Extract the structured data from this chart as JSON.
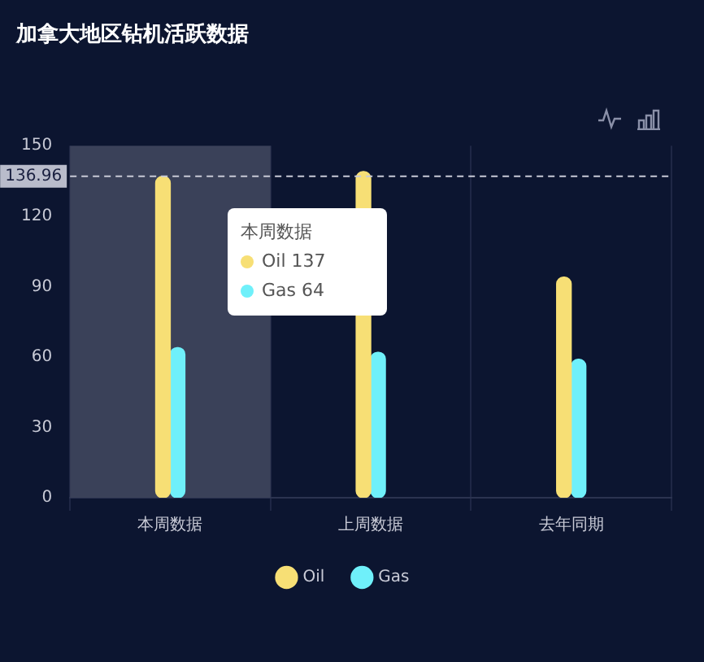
{
  "chart_data": {
    "type": "bar",
    "title": "加拿大地区钻机活跃数据",
    "categories": [
      "本周数据",
      "上周数据",
      "去年同期"
    ],
    "series": [
      {
        "name": "Oil",
        "color": "#f7df75",
        "values": [
          137,
          139,
          94
        ]
      },
      {
        "name": "Gas",
        "color": "#6ff0fa",
        "values": [
          64,
          62,
          59
        ]
      }
    ],
    "ylim": [
      0,
      150
    ],
    "yticks": [
      0,
      30,
      60,
      90,
      120,
      150
    ],
    "grid": "x",
    "legend": "bottom",
    "ref_lines": [
      {
        "axis": "y",
        "value": 136.96,
        "label": "136.96",
        "line_style": "dashed",
        "color": "#c8cad6"
      }
    ],
    "bands": [
      {
        "axis": "x",
        "from": "本周数据",
        "to": "本周数据",
        "color": "#3a4159"
      }
    ],
    "annotations": [
      "本周数据",
      "Oil 137",
      "Gas 64"
    ]
  }
}
